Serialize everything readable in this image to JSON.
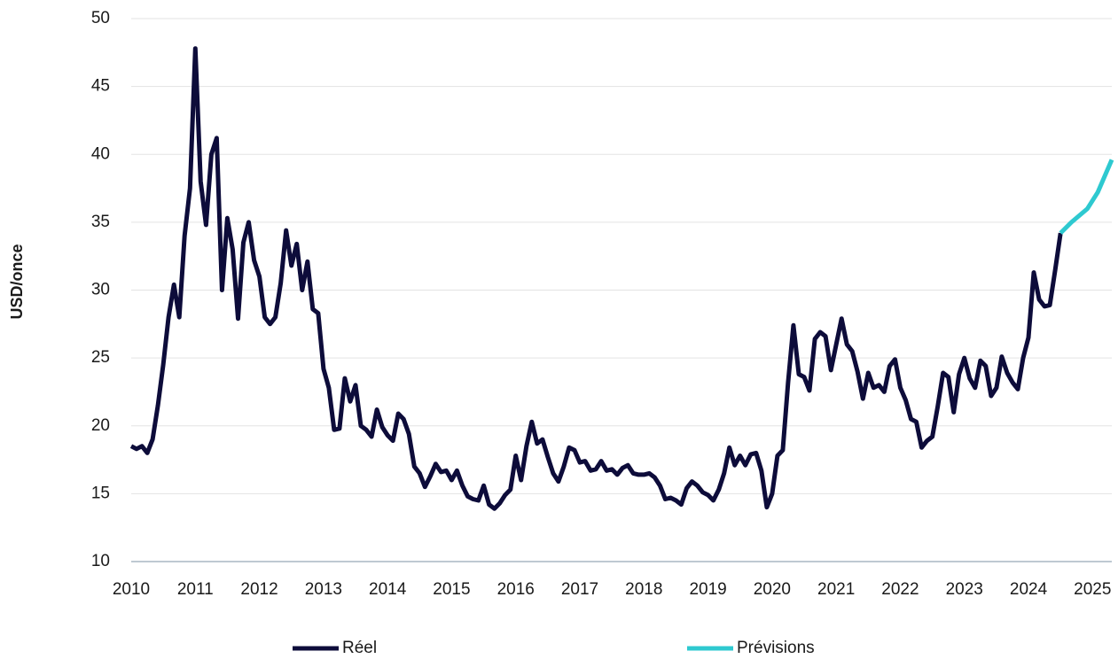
{
  "chart_data": {
    "type": "line",
    "y_label": "USD/once",
    "xlim": [
      2010,
      2025.3
    ],
    "xticks": [
      2010,
      2011,
      2012,
      2013,
      2014,
      2015,
      2016,
      2017,
      2018,
      2019,
      2020,
      2021,
      2022,
      2023,
      2024,
      2025
    ],
    "ylim": [
      10,
      50
    ],
    "yticks": [
      10,
      15,
      20,
      25,
      30,
      35,
      40,
      45,
      50
    ],
    "grid": true,
    "legend": "bottom",
    "series": [
      {
        "name": "Réel",
        "color": "#0d0c3a",
        "x": [
          2010,
          2010.083,
          2010.167,
          2010.25,
          2010.333,
          2010.417,
          2010.5,
          2010.583,
          2010.667,
          2010.75,
          2010.833,
          2010.917,
          2011,
          2011.083,
          2011.167,
          2011.25,
          2011.333,
          2011.417,
          2011.5,
          2011.583,
          2011.667,
          2011.75,
          2011.833,
          2011.917,
          2012,
          2012.083,
          2012.167,
          2012.25,
          2012.333,
          2012.417,
          2012.5,
          2012.583,
          2012.667,
          2012.75,
          2012.833,
          2012.917,
          2013,
          2013.083,
          2013.167,
          2013.25,
          2013.333,
          2013.417,
          2013.5,
          2013.583,
          2013.667,
          2013.75,
          2013.833,
          2013.917,
          2014,
          2014.083,
          2014.167,
          2014.25,
          2014.333,
          2014.417,
          2014.5,
          2014.583,
          2014.667,
          2014.75,
          2014.833,
          2014.917,
          2015,
          2015.083,
          2015.167,
          2015.25,
          2015.333,
          2015.417,
          2015.5,
          2015.583,
          2015.667,
          2015.75,
          2015.833,
          2015.917,
          2016,
          2016.083,
          2016.167,
          2016.25,
          2016.333,
          2016.417,
          2016.5,
          2016.583,
          2016.667,
          2016.75,
          2016.833,
          2016.917,
          2017,
          2017.083,
          2017.167,
          2017.25,
          2017.333,
          2017.417,
          2017.5,
          2017.583,
          2017.667,
          2017.75,
          2017.833,
          2017.917,
          2018,
          2018.083,
          2018.167,
          2018.25,
          2018.333,
          2018.417,
          2018.5,
          2018.583,
          2018.667,
          2018.75,
          2018.833,
          2018.917,
          2019,
          2019.083,
          2019.167,
          2019.25,
          2019.333,
          2019.417,
          2019.5,
          2019.583,
          2019.667,
          2019.75,
          2019.833,
          2019.917,
          2020,
          2020.083,
          2020.167,
          2020.25,
          2020.333,
          2020.417,
          2020.5,
          2020.583,
          2020.667,
          2020.75,
          2020.833,
          2020.917,
          2021,
          2021.083,
          2021.167,
          2021.25,
          2021.333,
          2021.417,
          2021.5,
          2021.583,
          2021.667,
          2021.75,
          2021.833,
          2021.917,
          2022,
          2022.083,
          2022.167,
          2022.25,
          2022.333,
          2022.417,
          2022.5,
          2022.583,
          2022.667,
          2022.75,
          2022.833,
          2022.917,
          2023,
          2023.083,
          2023.167,
          2023.25,
          2023.333,
          2023.417,
          2023.5,
          2023.583,
          2023.667,
          2023.75,
          2023.833,
          2023.917,
          2024,
          2024.083,
          2024.167,
          2024.25,
          2024.333,
          2024.417,
          2024.5
        ],
        "values": [
          18.5,
          18.3,
          18.5,
          18.0,
          19.0,
          21.5,
          24.5,
          28.0,
          30.4,
          28.0,
          34.0,
          37.5,
          47.8,
          38.0,
          34.8,
          40.0,
          41.2,
          30.0,
          35.3,
          33.0,
          27.9,
          33.5,
          35.0,
          32.2,
          31.0,
          28.0,
          27.5,
          28.0,
          30.5,
          34.4,
          31.8,
          33.4,
          30.0,
          32.1,
          28.6,
          28.3,
          24.2,
          22.8,
          19.7,
          19.8,
          23.5,
          21.8,
          23.0,
          20.0,
          19.7,
          19.2,
          21.2,
          19.9,
          19.3,
          18.9,
          20.9,
          20.5,
          19.4,
          17.0,
          16.5,
          15.5,
          16.3,
          17.2,
          16.6,
          16.7,
          16.0,
          16.7,
          15.6,
          14.8,
          14.6,
          14.5,
          15.6,
          14.2,
          13.9,
          14.3,
          14.9,
          15.3,
          17.8,
          16.0,
          18.5,
          20.3,
          18.7,
          19.0,
          17.7,
          16.5,
          15.9,
          17.0,
          18.4,
          18.2,
          17.3,
          17.4,
          16.7,
          16.8,
          17.4,
          16.7,
          16.8,
          16.4,
          16.9,
          17.1,
          16.5,
          16.4,
          16.4,
          16.5,
          16.2,
          15.6,
          14.6,
          14.7,
          14.5,
          14.2,
          15.4,
          15.9,
          15.6,
          15.1,
          14.9,
          14.5,
          15.3,
          16.5,
          18.4,
          17.1,
          17.8,
          17.1,
          17.9,
          18.0,
          16.7,
          14.0,
          15.0,
          17.8,
          18.2,
          23.2,
          27.4,
          23.8,
          23.6,
          22.6,
          26.4,
          26.9,
          26.6,
          24.1,
          26.0,
          27.9,
          26.0,
          25.5,
          24.0,
          22.0,
          23.9,
          22.8,
          23.0,
          22.5,
          24.4,
          24.9,
          22.8,
          21.9,
          20.5,
          20.3,
          18.4,
          18.9,
          19.2,
          21.4,
          23.9,
          23.6,
          21.0,
          23.8,
          25.0,
          23.5,
          22.8,
          24.8,
          24.4,
          22.2,
          22.8,
          25.1,
          23.9,
          23.2,
          22.7,
          25.0,
          26.5,
          31.3,
          29.3,
          28.8,
          28.9,
          31.5,
          34.2
        ]
      },
      {
        "name": "Prévisions",
        "color": "#2ec9d0",
        "x": [
          2024.5,
          2024.67,
          2024.92,
          2025.08,
          2025.3
        ],
        "values": [
          34.2,
          35.0,
          36.0,
          37.2,
          39.6
        ]
      }
    ]
  }
}
